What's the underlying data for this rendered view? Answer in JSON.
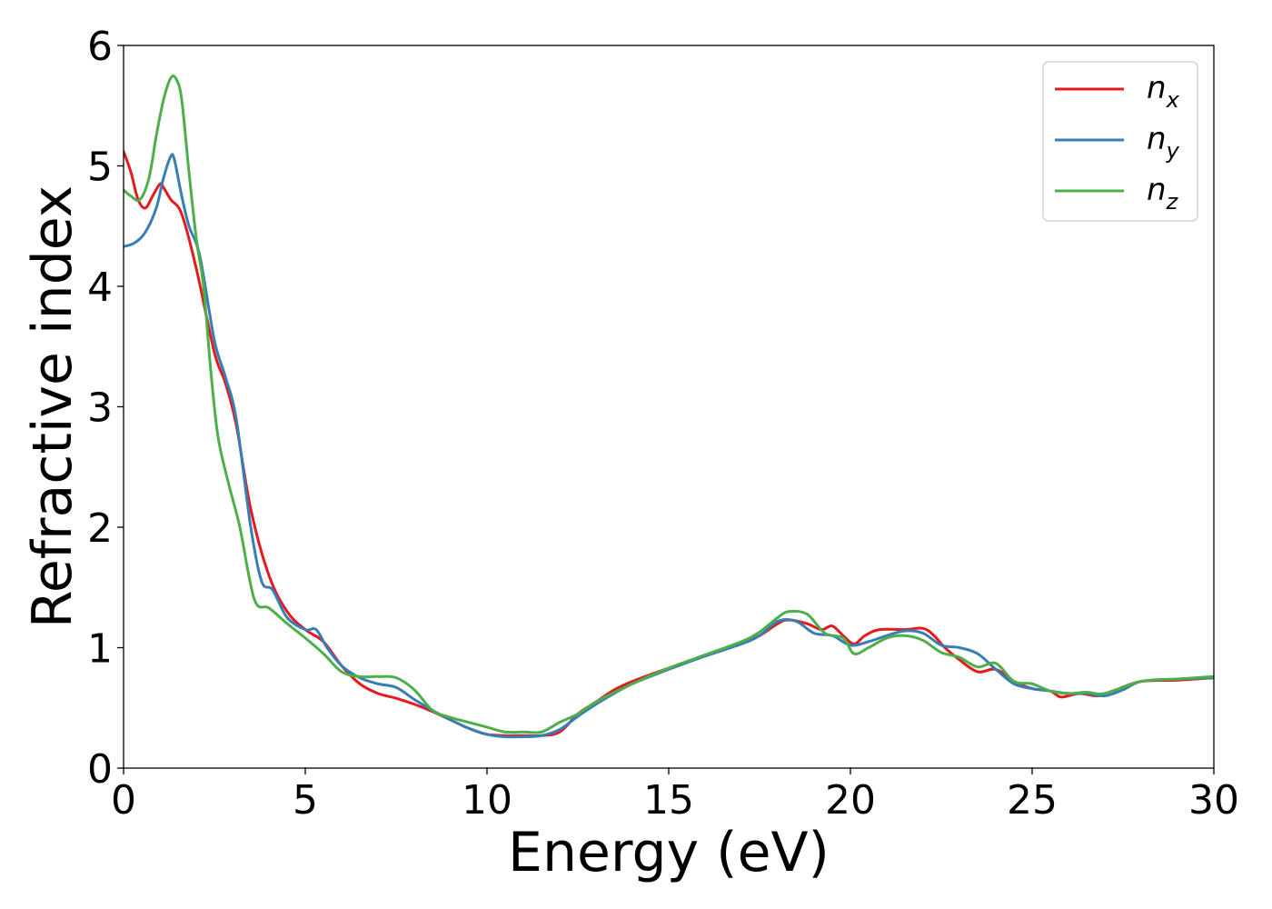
{
  "chart_data": {
    "type": "line",
    "xlabel": "Energy (eV)",
    "ylabel": "Refractive index",
    "xlim": [
      0,
      30
    ],
    "ylim": [
      0,
      6
    ],
    "xticks": [
      0,
      5,
      10,
      15,
      20,
      25,
      30
    ],
    "yticks": [
      0,
      1,
      2,
      3,
      4,
      5,
      6
    ],
    "grid": false,
    "legend_position": "top-right",
    "series": [
      {
        "name": "n",
        "subscript": "x",
        "color": "#e41a1c",
        "x": [
          0,
          0.2,
          0.4,
          0.6,
          0.8,
          1.0,
          1.1,
          1.3,
          1.6,
          2.0,
          2.5,
          2.8,
          3.1,
          3.5,
          4.0,
          4.5,
          5.0,
          5.5,
          6.0,
          6.5,
          7.0,
          7.5,
          8.0,
          8.5,
          9.0,
          9.5,
          10.0,
          10.5,
          11.0,
          11.5,
          12.0,
          12.5,
          13.0,
          13.5,
          14.0,
          15.0,
          16.0,
          17.0,
          17.5,
          18.0,
          18.3,
          18.8,
          19.2,
          19.5,
          19.8,
          20.1,
          20.4,
          20.8,
          21.5,
          22.0,
          22.3,
          22.6,
          23.0,
          23.5,
          24.0,
          24.5,
          25.0,
          25.5,
          25.8,
          26.3,
          26.8,
          27.3,
          28.0,
          29.0,
          30.0
        ],
        "y": [
          5.12,
          4.95,
          4.72,
          4.65,
          4.75,
          4.85,
          4.82,
          4.72,
          4.6,
          4.15,
          3.45,
          3.2,
          2.85,
          2.15,
          1.6,
          1.3,
          1.15,
          1.05,
          0.85,
          0.7,
          0.62,
          0.58,
          0.53,
          0.47,
          0.4,
          0.33,
          0.28,
          0.27,
          0.27,
          0.27,
          0.3,
          0.45,
          0.55,
          0.65,
          0.72,
          0.83,
          0.93,
          1.04,
          1.1,
          1.2,
          1.23,
          1.2,
          1.15,
          1.18,
          1.1,
          1.03,
          1.1,
          1.15,
          1.15,
          1.16,
          1.1,
          1.0,
          0.9,
          0.8,
          0.82,
          0.72,
          0.66,
          0.64,
          0.59,
          0.62,
          0.6,
          0.65,
          0.72,
          0.73,
          0.75
        ]
      },
      {
        "name": "n",
        "subscript": "y",
        "color": "#377eb8",
        "x": [
          0,
          0.3,
          0.6,
          0.9,
          1.1,
          1.3,
          1.4,
          1.6,
          1.8,
          2.1,
          2.5,
          2.8,
          3.1,
          3.5,
          3.8,
          4.1,
          4.5,
          5.0,
          5.3,
          5.6,
          6.0,
          6.5,
          7.0,
          7.5,
          8.0,
          8.5,
          9.0,
          9.5,
          10.0,
          10.5,
          11.0,
          11.5,
          12.0,
          12.5,
          13.0,
          13.5,
          14.0,
          15.0,
          16.0,
          17.0,
          17.5,
          18.0,
          18.5,
          19.0,
          19.5,
          20.0,
          20.5,
          21.0,
          21.5,
          22.0,
          22.5,
          23.0,
          23.5,
          24.0,
          24.5,
          25.0,
          25.5,
          26.0,
          26.5,
          27.0,
          27.5,
          28.0,
          29.0,
          30.0
        ],
        "y": [
          4.33,
          4.36,
          4.45,
          4.65,
          4.9,
          5.08,
          5.05,
          4.75,
          4.5,
          4.25,
          3.55,
          3.25,
          2.9,
          2.0,
          1.55,
          1.48,
          1.25,
          1.15,
          1.15,
          1.0,
          0.85,
          0.75,
          0.7,
          0.67,
          0.57,
          0.48,
          0.4,
          0.33,
          0.28,
          0.26,
          0.26,
          0.27,
          0.32,
          0.43,
          0.53,
          0.62,
          0.7,
          0.82,
          0.93,
          1.03,
          1.1,
          1.22,
          1.22,
          1.12,
          1.1,
          1.02,
          1.05,
          1.1,
          1.14,
          1.12,
          1.02,
          1.0,
          0.95,
          0.82,
          0.7,
          0.66,
          0.64,
          0.62,
          0.62,
          0.6,
          0.65,
          0.72,
          0.74,
          0.75
        ]
      },
      {
        "name": "n",
        "subscript": "z",
        "color": "#4daf4a",
        "x": [
          0,
          0.2,
          0.45,
          0.7,
          0.9,
          1.1,
          1.3,
          1.45,
          1.6,
          1.8,
          2.0,
          2.2,
          2.4,
          2.6,
          2.9,
          3.2,
          3.6,
          4.0,
          4.5,
          5.0,
          5.5,
          6.0,
          6.5,
          7.0,
          7.5,
          8.0,
          8.5,
          9.0,
          9.5,
          10.0,
          10.5,
          11.0,
          11.5,
          12.0,
          12.5,
          13.0,
          14.0,
          15.0,
          16.0,
          17.0,
          17.5,
          18.0,
          18.3,
          18.8,
          19.3,
          19.8,
          20.1,
          20.5,
          21.0,
          21.5,
          22.0,
          22.5,
          23.0,
          23.5,
          24.0,
          24.5,
          25.0,
          25.5,
          26.0,
          26.5,
          27.0,
          28.0,
          29.0,
          30.0
        ],
        "y": [
          4.8,
          4.75,
          4.72,
          4.9,
          5.25,
          5.55,
          5.73,
          5.72,
          5.55,
          4.95,
          4.4,
          4.0,
          3.3,
          2.75,
          2.35,
          2.0,
          1.4,
          1.33,
          1.2,
          1.08,
          0.95,
          0.8,
          0.76,
          0.76,
          0.75,
          0.65,
          0.48,
          0.42,
          0.38,
          0.34,
          0.3,
          0.3,
          0.3,
          0.38,
          0.45,
          0.55,
          0.7,
          0.83,
          0.94,
          1.05,
          1.13,
          1.25,
          1.3,
          1.28,
          1.12,
          1.08,
          0.95,
          1.0,
          1.08,
          1.1,
          1.06,
          0.96,
          0.92,
          0.84,
          0.87,
          0.72,
          0.7,
          0.64,
          0.62,
          0.63,
          0.62,
          0.72,
          0.74,
          0.76
        ]
      }
    ]
  }
}
